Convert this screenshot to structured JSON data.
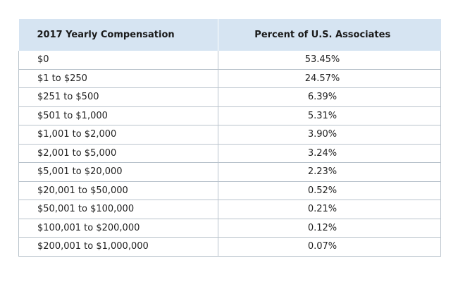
{
  "chart_data": {
    "type": "table",
    "columns": [
      "2017 Yearly Compensation",
      "Percent of U.S. Associates"
    ],
    "rows": [
      {
        "range": "$0",
        "percent": "53.45%"
      },
      {
        "range": "$1 to $250",
        "percent": "24.57%"
      },
      {
        "range": "$251 to $500",
        "percent": "6.39%"
      },
      {
        "range": "$501 to $1,000",
        "percent": "5.31%"
      },
      {
        "range": "$1,001 to $2,000",
        "percent": "3.90%"
      },
      {
        "range": "$2,001 to $5,000",
        "percent": "3.24%"
      },
      {
        "range": "$5,001 to $20,000",
        "percent": "2.23%"
      },
      {
        "range": "$20,001 to $50,000",
        "percent": "0.52%"
      },
      {
        "range": "$50,001 to $100,000",
        "percent": "0.21%"
      },
      {
        "range": "$100,001 to $200,000",
        "percent": "0.12%"
      },
      {
        "range": "$200,001 to $1,000,000",
        "percent": "0.07%"
      }
    ]
  },
  "colors": {
    "header_background": "#d6e4f2",
    "grid_lines": "#b9c3cc",
    "text": "#222222"
  }
}
